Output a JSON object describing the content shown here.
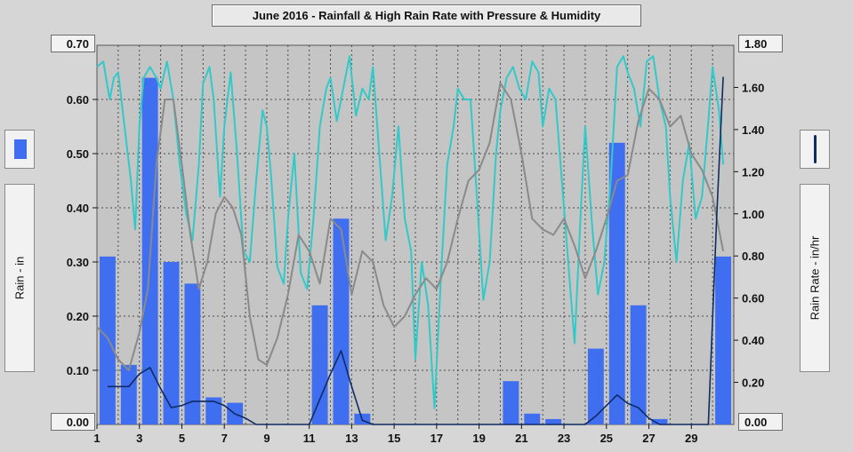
{
  "chart_data": {
    "type": "bar",
    "title": "June 2016 - Rainfall & High Rain Rate with Pressure & Humidity",
    "ylabel_left": "Rain - in",
    "ylabel_right": "Rain Rate - in/hr",
    "x_ticks": [
      "1",
      "3",
      "5",
      "7",
      "9",
      "11",
      "13",
      "15",
      "17",
      "19",
      "21",
      "23",
      "25",
      "27",
      "29"
    ],
    "y_left_ticks": [
      "0.00",
      "0.10",
      "0.20",
      "0.30",
      "0.40",
      "0.50",
      "0.60",
      "0.70"
    ],
    "y_right_ticks": [
      "0.00",
      "0.20",
      "0.40",
      "0.60",
      "0.80",
      "1.00",
      "1.20",
      "1.40",
      "1.60",
      "1.80"
    ],
    "ylim_left": [
      0,
      0.7
    ],
    "ylim_right": [
      0,
      1.8
    ],
    "xlim": [
      1,
      31
    ],
    "grid": true,
    "series": [
      {
        "name": "Rain - in",
        "color": "#3f6ff0",
        "days": [
          1,
          2,
          3,
          4,
          5,
          6,
          7,
          8,
          9,
          10,
          11,
          12,
          13,
          14,
          15,
          16,
          17,
          18,
          19,
          20,
          21,
          22,
          23,
          24,
          25,
          26,
          27,
          28,
          29,
          30
        ],
        "values": [
          0.31,
          0.11,
          0.64,
          0.3,
          0.26,
          0.05,
          0.04,
          0,
          0,
          0,
          0.22,
          0.38,
          0.02,
          0,
          0,
          0,
          0,
          0,
          0,
          0.08,
          0.02,
          0.01,
          0,
          0.14,
          0.52,
          0.22,
          0.01,
          0,
          0,
          0.31
        ]
      },
      {
        "name": "Rain Rate - in/hr",
        "color": "#0e2b64",
        "x": [
          1.5,
          2.0,
          2.5,
          3.0,
          3.5,
          4.0,
          4.5,
          5.0,
          5.5,
          6.0,
          6.5,
          7.0,
          7.5,
          8.0,
          8.5,
          9.0,
          10.0,
          11.0,
          11.5,
          12.0,
          12.5,
          13.0,
          13.5,
          14.0,
          15.0,
          16.0,
          17.0,
          18.0,
          19.0,
          20.0,
          21.0,
          22.0,
          23.0,
          24.0,
          24.5,
          25.0,
          25.5,
          26.0,
          26.5,
          27.0,
          27.5,
          28.0,
          29.0,
          29.8,
          30.2,
          30.5
        ],
        "values": [
          0.18,
          0.18,
          0.18,
          0.24,
          0.27,
          0.17,
          0.08,
          0.09,
          0.11,
          0.11,
          0.11,
          0.09,
          0.05,
          0.03,
          0.0,
          0.0,
          0.0,
          0.0,
          0.12,
          0.24,
          0.35,
          0.18,
          0.02,
          0.0,
          0.0,
          0.0,
          0.0,
          0.0,
          0.0,
          0.0,
          0.0,
          0.0,
          0.0,
          0.0,
          0.04,
          0.09,
          0.14,
          0.1,
          0.08,
          0.03,
          0.0,
          0.0,
          0.0,
          0.0,
          1.0,
          1.65
        ]
      },
      {
        "color": "#32c9c9",
        "x": [
          1.0,
          1.3,
          1.6,
          1.8,
          2.0,
          2.3,
          2.6,
          2.8,
          3.0,
          3.2,
          3.5,
          3.8,
          4.0,
          4.3,
          4.6,
          4.9,
          5.2,
          5.5,
          5.8,
          6.0,
          6.3,
          6.5,
          6.8,
          7.0,
          7.3,
          7.6,
          7.9,
          8.2,
          8.5,
          8.8,
          9.0,
          9.2,
          9.5,
          9.8,
          10.0,
          10.3,
          10.6,
          10.9,
          11.2,
          11.5,
          11.8,
          12.0,
          12.3,
          12.6,
          12.9,
          13.2,
          13.5,
          13.8,
          14.0,
          14.3,
          14.6,
          14.9,
          15.2,
          15.5,
          15.8,
          16.0,
          16.3,
          16.6,
          16.9,
          17.2,
          17.5,
          17.8,
          18.0,
          18.3,
          18.6,
          18.9,
          19.2,
          19.5,
          19.8,
          20.0,
          20.3,
          20.6,
          20.9,
          21.2,
          21.5,
          21.8,
          22.0,
          22.3,
          22.6,
          22.9,
          23.2,
          23.5,
          23.8,
          24.0,
          24.3,
          24.6,
          24.9,
          25.2,
          25.5,
          25.8,
          26.0,
          26.3,
          26.6,
          26.9,
          27.2,
          27.5,
          27.8,
          28.0,
          28.3,
          28.6,
          28.9,
          29.2,
          29.5,
          29.8,
          30.0,
          30.3,
          30.5
        ],
        "values": [
          0.66,
          0.67,
          0.6,
          0.64,
          0.65,
          0.55,
          0.45,
          0.36,
          0.55,
          0.64,
          0.66,
          0.64,
          0.62,
          0.67,
          0.6,
          0.48,
          0.39,
          0.34,
          0.48,
          0.63,
          0.66,
          0.6,
          0.42,
          0.55,
          0.65,
          0.5,
          0.32,
          0.3,
          0.45,
          0.58,
          0.55,
          0.46,
          0.29,
          0.26,
          0.38,
          0.5,
          0.28,
          0.25,
          0.38,
          0.55,
          0.62,
          0.64,
          0.56,
          0.62,
          0.68,
          0.57,
          0.62,
          0.6,
          0.66,
          0.5,
          0.34,
          0.42,
          0.55,
          0.38,
          0.32,
          0.12,
          0.3,
          0.22,
          0.03,
          0.27,
          0.48,
          0.55,
          0.62,
          0.6,
          0.6,
          0.42,
          0.23,
          0.3,
          0.5,
          0.58,
          0.64,
          0.66,
          0.62,
          0.6,
          0.67,
          0.65,
          0.55,
          0.62,
          0.6,
          0.45,
          0.3,
          0.15,
          0.4,
          0.55,
          0.38,
          0.24,
          0.3,
          0.45,
          0.66,
          0.68,
          0.65,
          0.62,
          0.55,
          0.67,
          0.68,
          0.6,
          0.55,
          0.42,
          0.3,
          0.45,
          0.52,
          0.38,
          0.42,
          0.56,
          0.66,
          0.58,
          0.48
        ]
      },
      {
        "color": "#8a8a8a",
        "x": [
          1.0,
          1.5,
          2.0,
          2.5,
          3.0,
          3.4,
          3.8,
          4.2,
          4.6,
          5.0,
          5.4,
          5.8,
          6.2,
          6.6,
          7.0,
          7.4,
          7.8,
          8.2,
          8.6,
          9.0,
          9.5,
          10.0,
          10.5,
          11.0,
          11.5,
          12.0,
          12.5,
          13.0,
          13.5,
          14.0,
          14.5,
          15.0,
          15.5,
          16.0,
          16.5,
          17.0,
          17.5,
          18.0,
          18.5,
          19.0,
          19.5,
          20.0,
          20.5,
          21.0,
          21.5,
          22.0,
          22.5,
          23.0,
          23.5,
          24.0,
          24.5,
          25.0,
          25.5,
          26.0,
          26.5,
          27.0,
          27.5,
          28.0,
          28.5,
          29.0,
          29.5,
          30.0,
          30.5
        ],
        "values": [
          0.18,
          0.16,
          0.12,
          0.1,
          0.17,
          0.25,
          0.48,
          0.6,
          0.6,
          0.48,
          0.35,
          0.25,
          0.3,
          0.39,
          0.42,
          0.4,
          0.35,
          0.2,
          0.12,
          0.11,
          0.16,
          0.24,
          0.35,
          0.32,
          0.26,
          0.38,
          0.36,
          0.24,
          0.32,
          0.3,
          0.22,
          0.18,
          0.2,
          0.24,
          0.27,
          0.25,
          0.3,
          0.38,
          0.45,
          0.47,
          0.52,
          0.63,
          0.6,
          0.5,
          0.38,
          0.36,
          0.35,
          0.38,
          0.33,
          0.27,
          0.32,
          0.38,
          0.45,
          0.46,
          0.56,
          0.62,
          0.6,
          0.55,
          0.57,
          0.5,
          0.47,
          0.42,
          0.32
        ]
      }
    ]
  },
  "ui": {
    "title": "June 2016 - Rainfall & High Rain Rate with Pressure & Humidity",
    "left_axis_top": "0.70",
    "left_axis_bottom": "0.00",
    "right_axis_top": "1.80",
    "right_axis_bottom": "0.00",
    "left_axis_label": "Rain - in",
    "right_axis_label": "Rain Rate - in/hr"
  }
}
